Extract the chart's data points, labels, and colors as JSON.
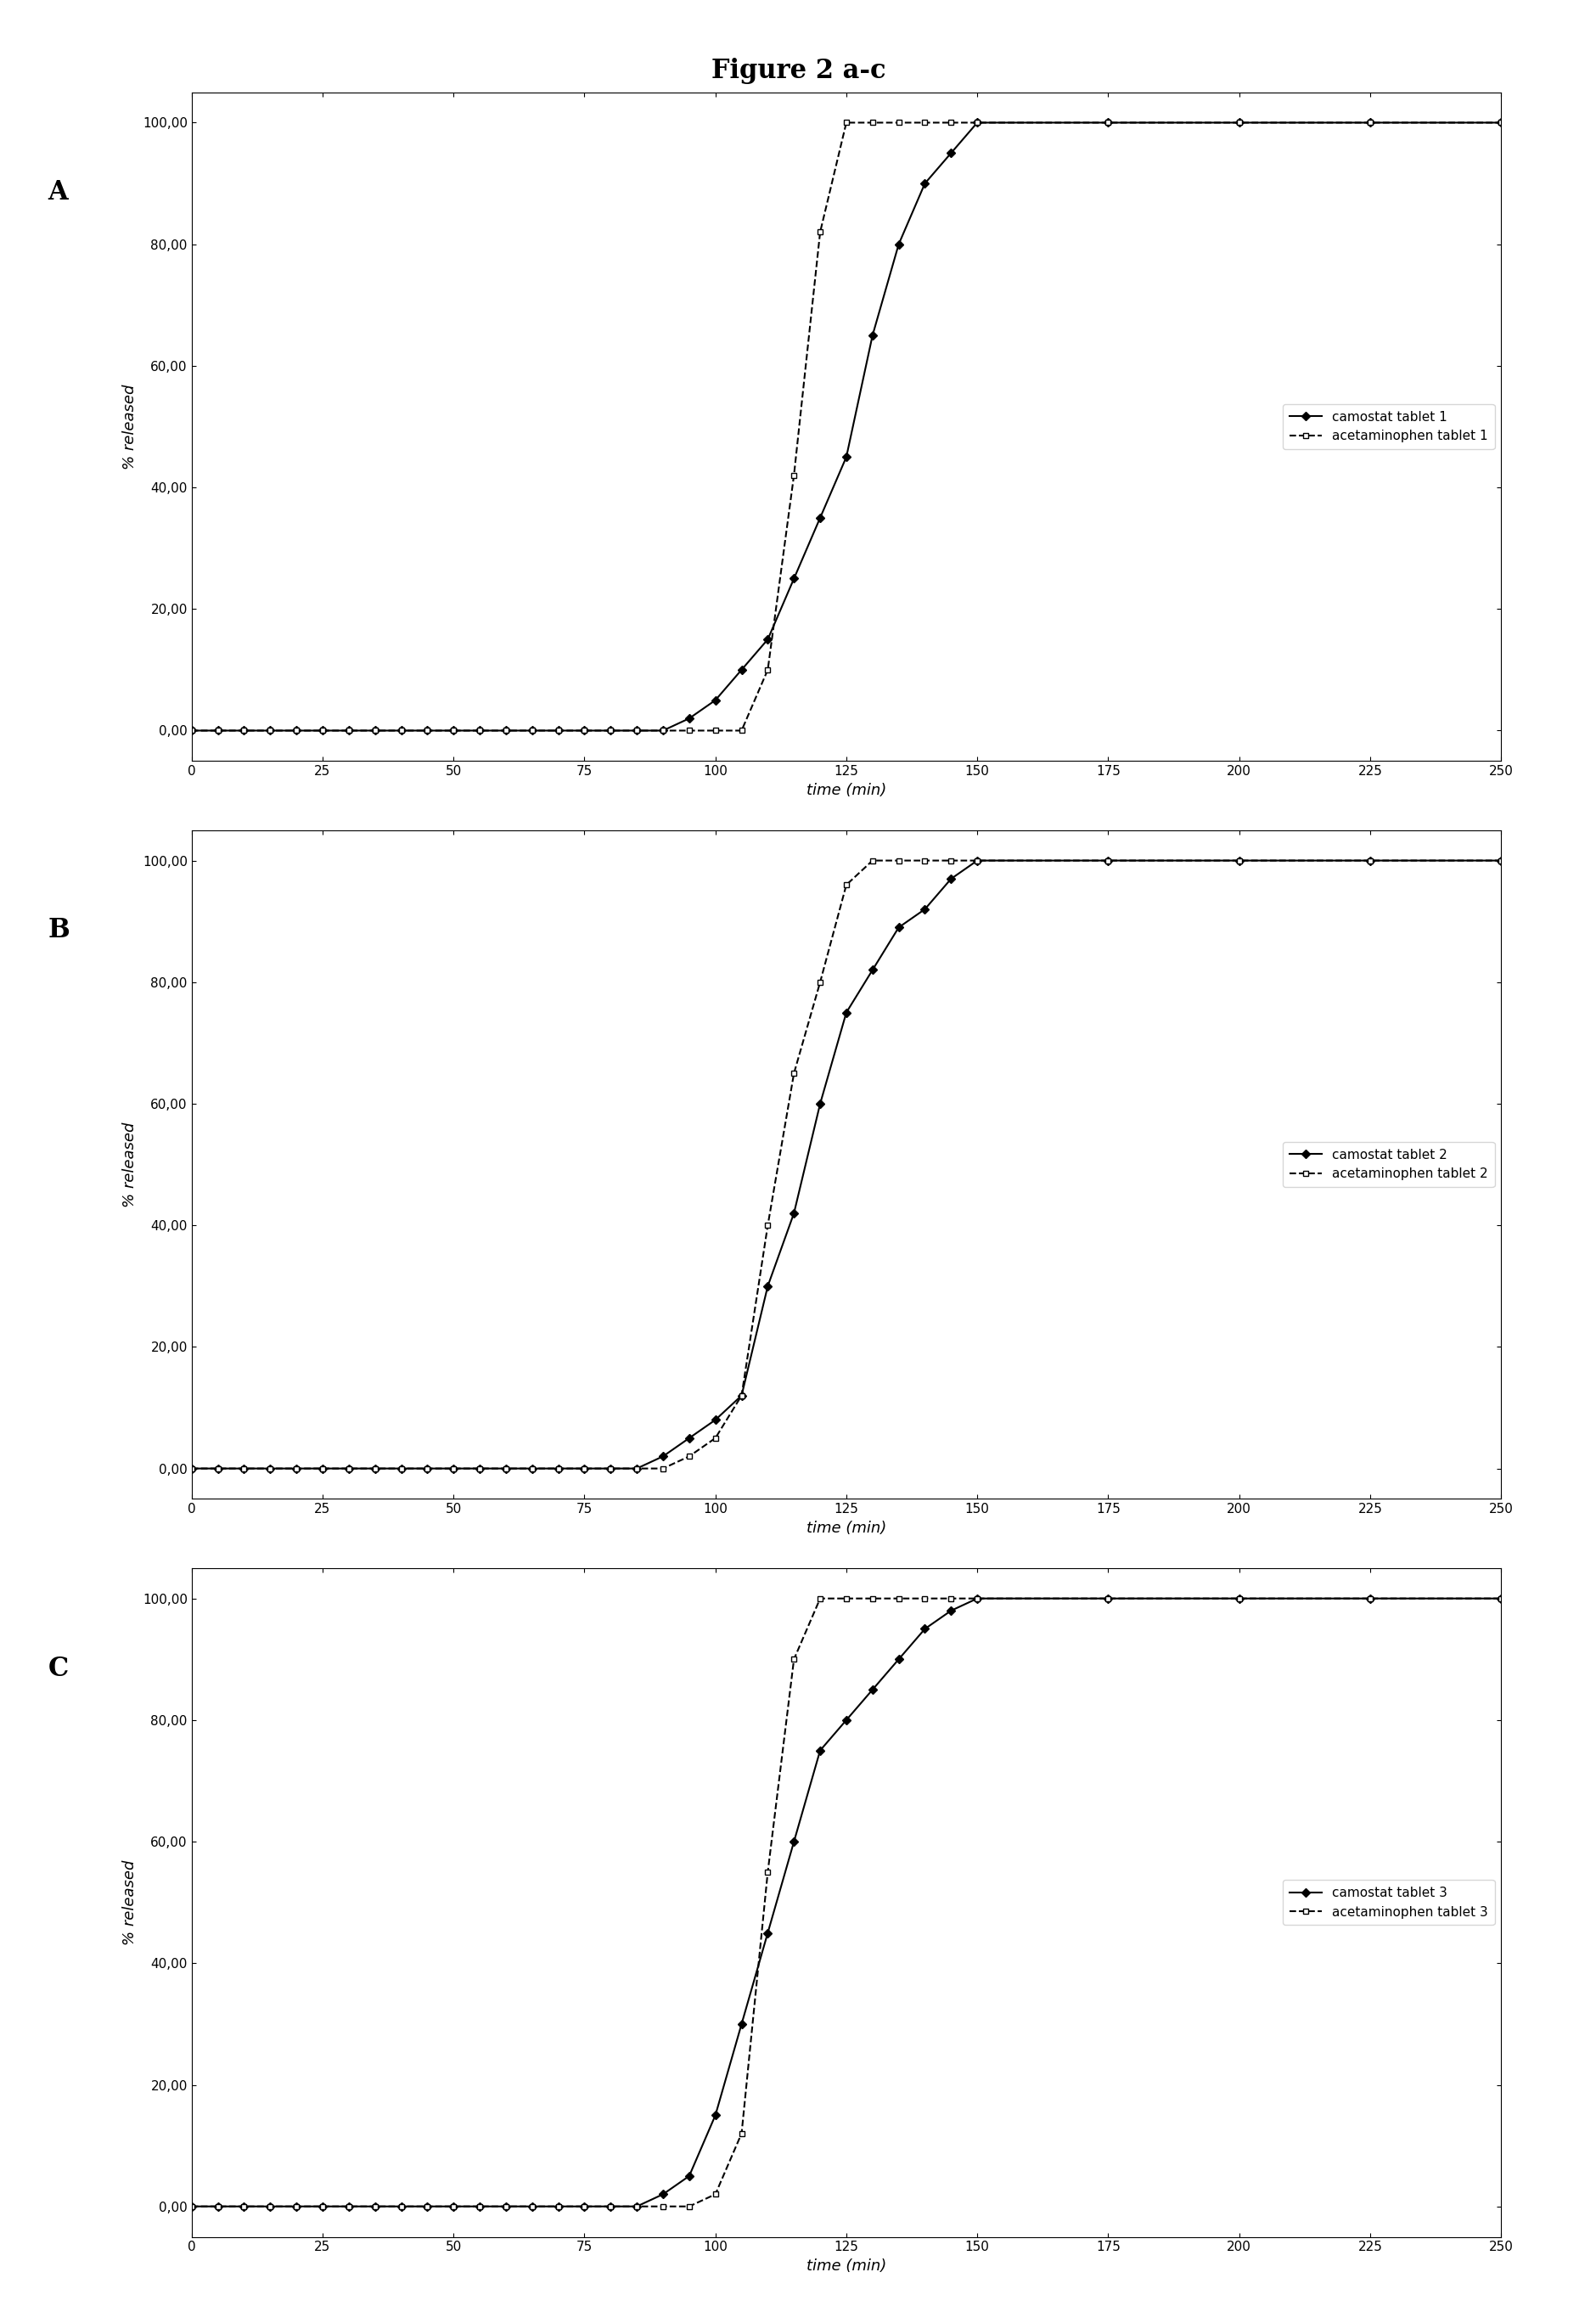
{
  "figure_title": "Figure 2 a-c",
  "panel_labels": [
    "A",
    "B",
    "C"
  ],
  "xlabel": "time (min)",
  "ylabel": "% released",
  "xlim": [
    0,
    250
  ],
  "ylim": [
    -5,
    105
  ],
  "xticks": [
    0,
    25,
    50,
    75,
    100,
    125,
    150,
    175,
    200,
    225,
    250
  ],
  "yticks": [
    0.0,
    20.0,
    40.0,
    60.0,
    80.0,
    100.0
  ],
  "ytick_labels": [
    "0,00",
    "20,00",
    "40,00",
    "60,00",
    "80,00",
    "100,00"
  ],
  "panel_A": {
    "camostat": {
      "x": [
        0,
        5,
        10,
        15,
        20,
        25,
        30,
        35,
        40,
        45,
        50,
        55,
        60,
        65,
        70,
        75,
        80,
        85,
        90,
        95,
        100,
        105,
        110,
        115,
        120,
        125,
        130,
        135,
        140,
        145,
        150,
        175,
        200,
        225,
        250
      ],
      "y": [
        0,
        0,
        0,
        0,
        0,
        0,
        0,
        0,
        0,
        0,
        0,
        0,
        0,
        0,
        0,
        0,
        0,
        0,
        0,
        2,
        5,
        10,
        15,
        25,
        35,
        45,
        65,
        80,
        90,
        95,
        100,
        100,
        100,
        100,
        100
      ],
      "label": "camostat tablet 1",
      "marker": "D",
      "color": "#000000",
      "linewidth": 1.5,
      "markersize": 5
    },
    "acetaminophen": {
      "x": [
        0,
        5,
        10,
        15,
        20,
        25,
        30,
        35,
        40,
        45,
        50,
        55,
        60,
        65,
        70,
        75,
        80,
        85,
        90,
        95,
        100,
        105,
        110,
        115,
        120,
        125,
        130,
        135,
        140,
        145,
        150,
        175,
        200,
        225,
        250
      ],
      "y": [
        0,
        0,
        0,
        0,
        0,
        0,
        0,
        0,
        0,
        0,
        0,
        0,
        0,
        0,
        0,
        0,
        0,
        0,
        0,
        0,
        0,
        0,
        10,
        42,
        82,
        100,
        100,
        100,
        100,
        100,
        100,
        100,
        100,
        100,
        100
      ],
      "label": "acetaminophen tablet 1",
      "marker": "s",
      "color": "#000000",
      "linewidth": 1.5,
      "markersize": 5
    }
  },
  "panel_B": {
    "camostat": {
      "x": [
        0,
        5,
        10,
        15,
        20,
        25,
        30,
        35,
        40,
        45,
        50,
        55,
        60,
        65,
        70,
        75,
        80,
        85,
        90,
        95,
        100,
        105,
        110,
        115,
        120,
        125,
        130,
        135,
        140,
        145,
        150,
        175,
        200,
        225,
        250
      ],
      "y": [
        0,
        0,
        0,
        0,
        0,
        0,
        0,
        0,
        0,
        0,
        0,
        0,
        0,
        0,
        0,
        0,
        0,
        0,
        2,
        5,
        8,
        12,
        30,
        42,
        60,
        75,
        82,
        89,
        92,
        97,
        100,
        100,
        100,
        100,
        100
      ],
      "label": "camostat tablet 2",
      "marker": "D",
      "color": "#000000",
      "linewidth": 1.5,
      "markersize": 5
    },
    "acetaminophen": {
      "x": [
        0,
        5,
        10,
        15,
        20,
        25,
        30,
        35,
        40,
        45,
        50,
        55,
        60,
        65,
        70,
        75,
        80,
        85,
        90,
        95,
        100,
        105,
        110,
        115,
        120,
        125,
        130,
        135,
        140,
        145,
        150,
        175,
        200,
        225,
        250
      ],
      "y": [
        0,
        0,
        0,
        0,
        0,
        0,
        0,
        0,
        0,
        0,
        0,
        0,
        0,
        0,
        0,
        0,
        0,
        0,
        0,
        2,
        5,
        12,
        40,
        65,
        80,
        96,
        100,
        100,
        100,
        100,
        100,
        100,
        100,
        100,
        100
      ],
      "label": "acetaminophen tablet 2",
      "marker": "s",
      "color": "#000000",
      "linewidth": 1.5,
      "markersize": 5
    }
  },
  "panel_C": {
    "camostat": {
      "x": [
        0,
        5,
        10,
        15,
        20,
        25,
        30,
        35,
        40,
        45,
        50,
        55,
        60,
        65,
        70,
        75,
        80,
        85,
        90,
        95,
        100,
        105,
        110,
        115,
        120,
        125,
        130,
        135,
        140,
        145,
        150,
        175,
        200,
        225,
        250
      ],
      "y": [
        0,
        0,
        0,
        0,
        0,
        0,
        0,
        0,
        0,
        0,
        0,
        0,
        0,
        0,
        0,
        0,
        0,
        0,
        2,
        5,
        15,
        30,
        45,
        60,
        75,
        80,
        85,
        90,
        95,
        98,
        100,
        100,
        100,
        100,
        100
      ],
      "label": "camostat tablet 3",
      "marker": "D",
      "color": "#000000",
      "linewidth": 1.5,
      "markersize": 5
    },
    "acetaminophen": {
      "x": [
        0,
        5,
        10,
        15,
        20,
        25,
        30,
        35,
        40,
        45,
        50,
        55,
        60,
        65,
        70,
        75,
        80,
        85,
        90,
        95,
        100,
        105,
        110,
        115,
        120,
        125,
        130,
        135,
        140,
        145,
        150,
        175,
        200,
        225,
        250
      ],
      "y": [
        0,
        0,
        0,
        0,
        0,
        0,
        0,
        0,
        0,
        0,
        0,
        0,
        0,
        0,
        0,
        0,
        0,
        0,
        0,
        0,
        2,
        12,
        55,
        90,
        100,
        100,
        100,
        100,
        100,
        100,
        100,
        100,
        100,
        100,
        100
      ],
      "label": "acetaminophen tablet 3",
      "marker": "s",
      "color": "#000000",
      "linewidth": 1.5,
      "markersize": 5
    }
  },
  "background_color": "#ffffff",
  "figure_bg": "#ffffff"
}
